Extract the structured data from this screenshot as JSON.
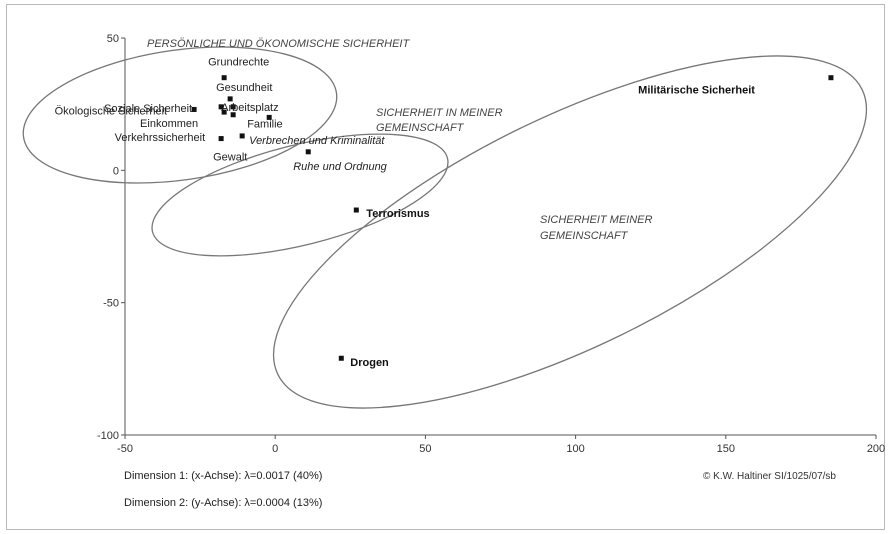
{
  "chart_data": {
    "type": "scatter",
    "xlim": [
      -50,
      200
    ],
    "ylim": [
      -100,
      50
    ],
    "xticks": [
      "-50",
      "0",
      "50",
      "100",
      "150",
      "200"
    ],
    "yticks": [
      "50",
      "0",
      "-50",
      "-100"
    ],
    "grid": false,
    "points": [
      {
        "label": "Grundrechte",
        "x": -17,
        "y": 35,
        "bold": false
      },
      {
        "label": "Gesundheit",
        "x": -15,
        "y": 27,
        "bold": false
      },
      {
        "label": "Arbeitsplatz",
        "x": -14,
        "y": 24,
        "bold": false
      },
      {
        "label": "Soziale Sicherheit",
        "x": -18,
        "y": 24,
        "bold": false
      },
      {
        "label": "Ökologische Sicherheit",
        "x": -27,
        "y": 23,
        "bold": false
      },
      {
        "label": "Einkommen",
        "x": -17,
        "y": 22,
        "bold": false
      },
      {
        "label": "Familie",
        "x": -2,
        "y": 20,
        "bold": false
      },
      {
        "label": "Verkehrssicherheit",
        "x": -14,
        "y": 21,
        "bold": false
      },
      {
        "label": "Verbrechen und Kriminalität",
        "x": -11,
        "y": 13,
        "bold": false
      },
      {
        "label": "Gewalt",
        "x": -18,
        "y": 12,
        "bold": false
      },
      {
        "label": "Ruhe und Ordnung",
        "x": 11,
        "y": 7,
        "bold": false
      },
      {
        "label": "Terrorismus",
        "x": 27,
        "y": -15,
        "bold": true
      },
      {
        "label": "Drogen",
        "x": 22,
        "y": -71,
        "bold": true
      },
      {
        "label": "Militärische Sicherheit",
        "x": 185,
        "y": 35,
        "bold": true
      }
    ],
    "clusters": [
      {
        "label1": "PERSÖNLICHE UND ÖKONOMISCHE SICHERHEIT",
        "label2": ""
      },
      {
        "label1": "SICHERHEIT IN MEINER",
        "label2": "GEMEINSCHAFT"
      },
      {
        "label1": "SICHERHEIT MEINER",
        "label2": "GEMEINSCHAFT"
      }
    ]
  },
  "footer": {
    "dim1": "Dimension 1: (x-Achse): λ=0.0017 (40%)",
    "dim2": "Dimension 2: (y-Achse): λ=0.0004 (13%)",
    "copyright": "© K.W. Haltiner SI/1025/07/sb"
  }
}
